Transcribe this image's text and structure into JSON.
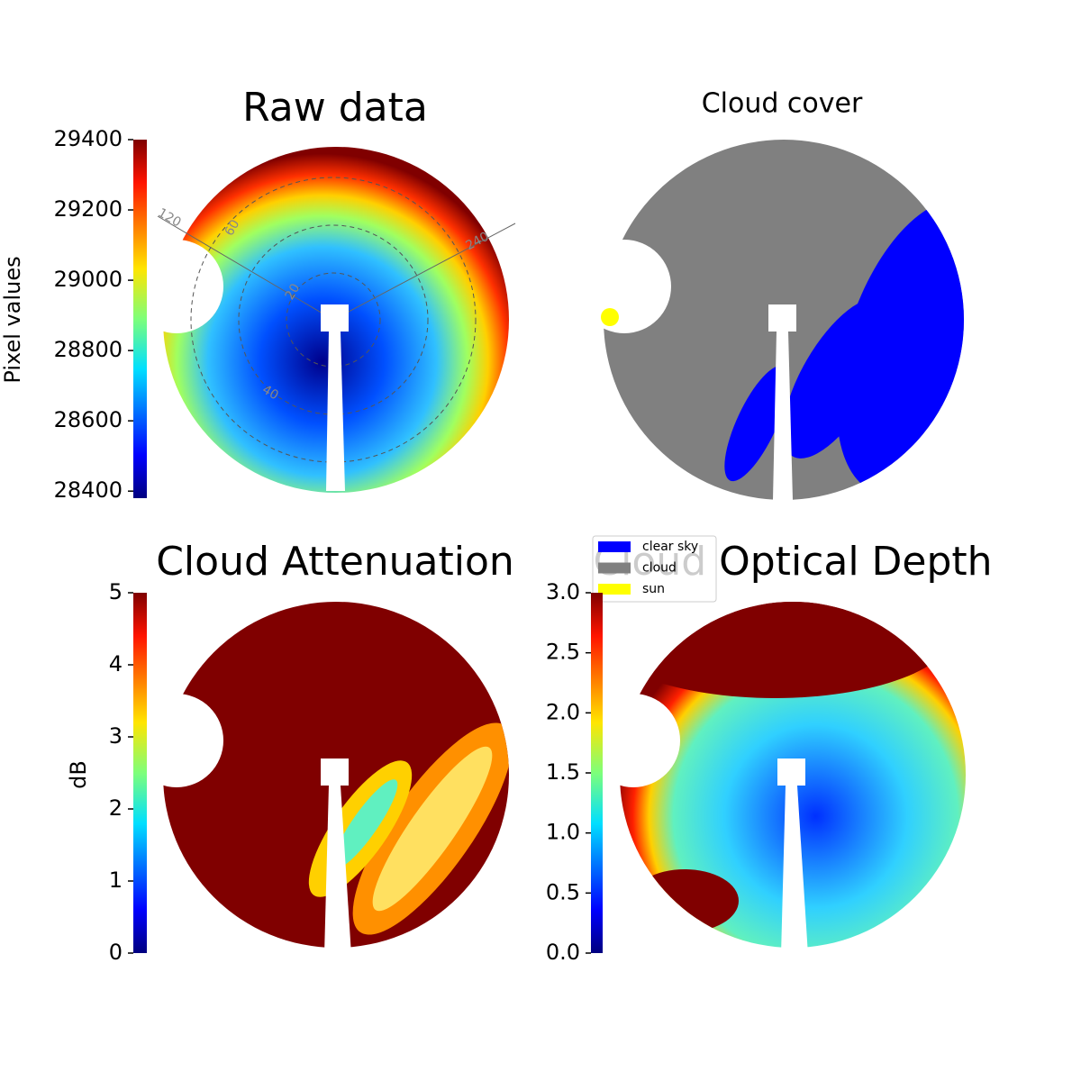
{
  "chart_data": [
    {
      "type": "image",
      "title": "Raw data",
      "colorbar_label": "Pixel values",
      "colormap": "jet",
      "clim": [
        28380,
        29400
      ],
      "ticks": [
        28400,
        28600,
        28800,
        29000,
        29200,
        29400
      ],
      "polar_labels": [
        "120",
        "60",
        "240",
        "20",
        "40"
      ]
    },
    {
      "type": "image",
      "title": "Cloud cover",
      "legend": [
        {
          "name": "clear sky",
          "color": "#0000ff"
        },
        {
          "name": "cloud",
          "color": "#808080"
        },
        {
          "name": "sun",
          "color": "#ffff00"
        }
      ]
    },
    {
      "type": "image",
      "title": "Cloud Attenuation",
      "colorbar_label": "dB",
      "colormap": "jet",
      "clim": [
        0,
        5
      ],
      "ticks": [
        0,
        1,
        2,
        3,
        4,
        5
      ]
    },
    {
      "type": "image",
      "title": "Cloud Optical Depth",
      "colormap": "jet",
      "clim": [
        0,
        3
      ],
      "ticks": [
        {
          "value": 0,
          "label": "0.0"
        },
        {
          "value": 0.5,
          "label": "0.5"
        },
        {
          "value": 1,
          "label": "1.0"
        },
        {
          "value": 1.5,
          "label": "1.5"
        },
        {
          "value": 2,
          "label": "2.0"
        },
        {
          "value": 2.5,
          "label": "2.5"
        },
        {
          "value": 3,
          "label": "3.0"
        }
      ]
    }
  ]
}
